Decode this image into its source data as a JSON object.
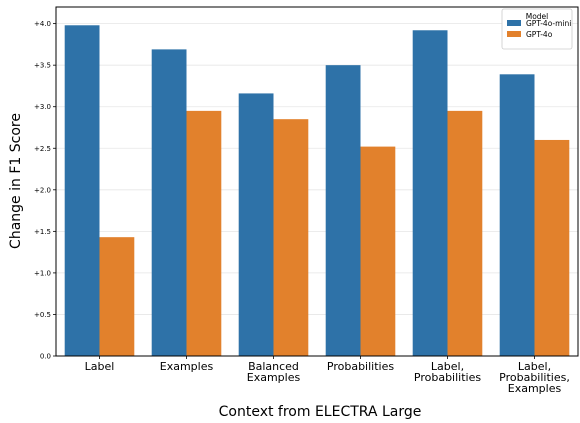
{
  "chart_data": {
    "type": "bar",
    "title": "",
    "xlabel": "Context from ELECTRA Large",
    "ylabel": "Change in F1 Score",
    "ylim": [
      0,
      4.2
    ],
    "y_ticks": [
      "0.0",
      "+0.5",
      "+1.0",
      "+1.5",
      "+2.0",
      "+2.5",
      "+3.0",
      "+3.5",
      "+4.0"
    ],
    "y_tick_values": [
      0,
      0.5,
      1.0,
      1.5,
      2.0,
      2.5,
      3.0,
      3.5,
      4.0
    ],
    "grid": true,
    "legend_position": "top-right",
    "legend_title": "Model",
    "categories": [
      [
        "Label"
      ],
      [
        "Examples"
      ],
      [
        "Balanced",
        "Examples"
      ],
      [
        "Probabilities"
      ],
      [
        "Label,",
        "Probabilities"
      ],
      [
        "Label,",
        "Probabilities,",
        "Examples"
      ]
    ],
    "series": [
      {
        "name": "GPT-4o-mini",
        "color": "#2e72a8",
        "values": [
          3.98,
          3.69,
          3.16,
          3.5,
          3.92,
          3.39
        ]
      },
      {
        "name": "GPT-4o",
        "color": "#e2812c",
        "values": [
          1.43,
          2.95,
          2.85,
          2.52,
          2.95,
          2.6
        ]
      }
    ]
  }
}
